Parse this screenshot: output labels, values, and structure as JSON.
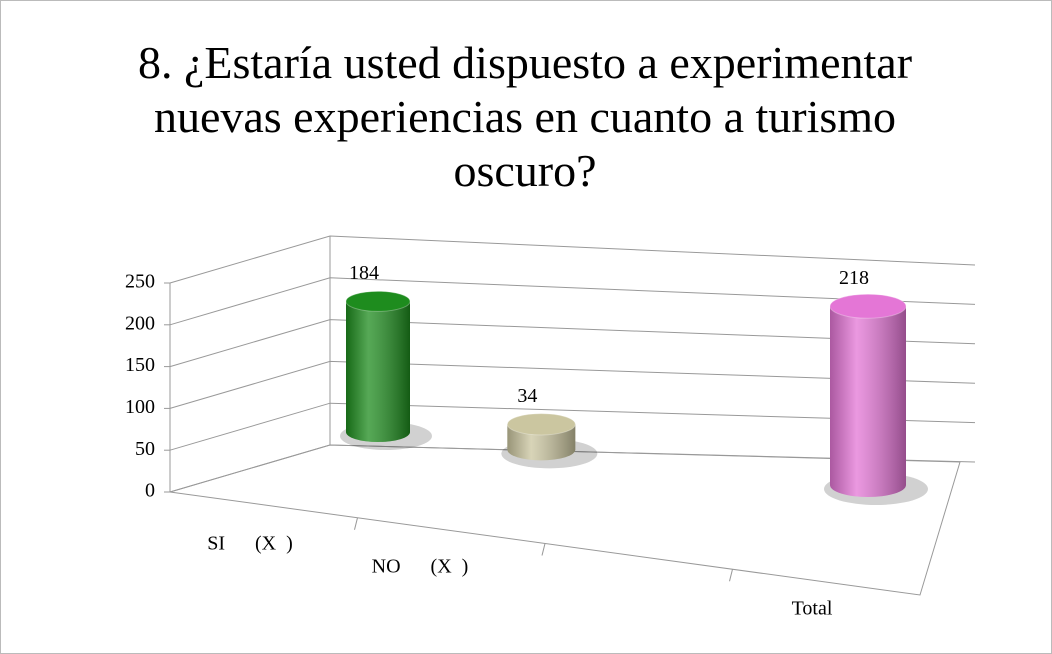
{
  "chart_data": {
    "type": "bar3d",
    "title": "8. ¿Estaría usted dispuesto a experimentar nuevas experiencias en cuanto a turismo oscuro?",
    "categories": [
      "SI      (X  )",
      "NO      (X  )",
      null,
      "Total"
    ],
    "values": [
      184,
      34,
      null,
      218
    ],
    "colors": [
      "#1e8c1e",
      "#cbc6a0",
      null,
      "#e476d6"
    ],
    "ylim": [
      0,
      250
    ],
    "yticks": [
      0,
      50,
      100,
      150,
      200,
      250
    ],
    "grid": true
  }
}
